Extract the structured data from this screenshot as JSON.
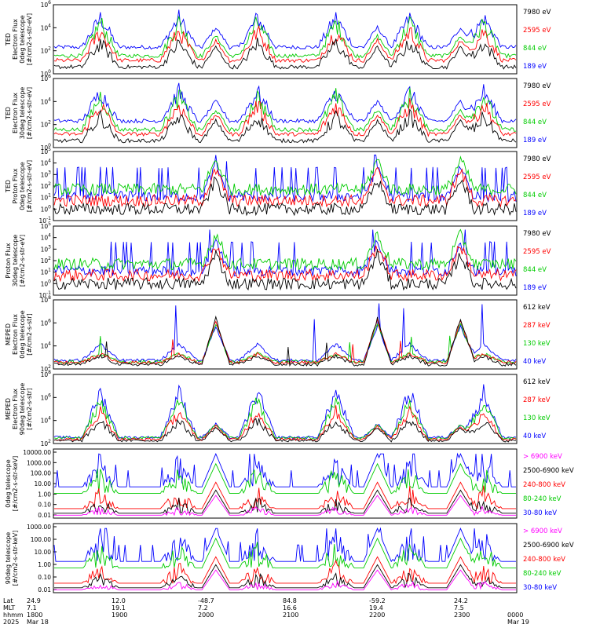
{
  "chart_data": [
    {
      "type": "line",
      "id": "ted-e-0",
      "ylabel": [
        "TED",
        "Electron Flux",
        "0deg telescope",
        "[#/cm2-s-str-eV]"
      ],
      "yticks": [
        "10^0",
        "10^2",
        "10^4",
        "10^6"
      ],
      "series": [
        {
          "name": "7980 eV",
          "color": "#000000"
        },
        {
          "name": "2595 eV",
          "color": "#ff0000"
        },
        {
          "name": "844 eV",
          "color": "#00cc00"
        },
        {
          "name": "189 eV",
          "color": "#0000ff"
        }
      ]
    },
    {
      "type": "line",
      "id": "ted-e-30",
      "ylabel": [
        "TED",
        "Electron Flux",
        "30deg telescope",
        "[#/cm2-s-str-eV]"
      ],
      "yticks": [
        "10^0",
        "10^2",
        "10^4",
        "10^6"
      ],
      "series": [
        {
          "name": "7980 eV",
          "color": "#000000"
        },
        {
          "name": "2595 eV",
          "color": "#ff0000"
        },
        {
          "name": "844 eV",
          "color": "#00cc00"
        },
        {
          "name": "189 eV",
          "color": "#0000ff"
        }
      ]
    },
    {
      "type": "line",
      "id": "ted-p-0",
      "ylabel": [
        "TED",
        "Proton Flux",
        "0deg telescope",
        "[#/cm2-s-str-eV]"
      ],
      "yticks": [
        "10^-1",
        "10^0",
        "10^1",
        "10^2",
        "10^3",
        "10^4",
        "10^5"
      ],
      "series": [
        {
          "name": "7980 eV",
          "color": "#000000"
        },
        {
          "name": "2595 eV",
          "color": "#ff0000"
        },
        {
          "name": "844 eV",
          "color": "#00cc00"
        },
        {
          "name": "189 eV",
          "color": "#0000ff"
        }
      ]
    },
    {
      "type": "line",
      "id": "ted-p-30",
      "ylabel": [
        "Proton Flux",
        "30deg telescope",
        "[#/cm2-s-str-eV]"
      ],
      "yticks": [
        "10^-1",
        "10^0",
        "10^1",
        "10^2",
        "10^3",
        "10^4",
        "10^5"
      ],
      "series": [
        {
          "name": "7980 eV",
          "color": "#000000"
        },
        {
          "name": "2595 eV",
          "color": "#ff0000"
        },
        {
          "name": "844 eV",
          "color": "#00cc00"
        },
        {
          "name": "189 eV",
          "color": "#0000ff"
        }
      ]
    },
    {
      "type": "line",
      "id": "meped-e-0",
      "ylabel": [
        "MEPED",
        "Electron Flux",
        "0deg telescope",
        "[#/cm2-s-str]"
      ],
      "yticks": [
        "10^2",
        "10^4",
        "10^6",
        "10^8"
      ],
      "series": [
        {
          "name": "612 keV",
          "color": "#000000"
        },
        {
          "name": "287 keV",
          "color": "#ff0000"
        },
        {
          "name": "130 keV",
          "color": "#00cc00"
        },
        {
          "name": "40 keV",
          "color": "#0000ff"
        }
      ]
    },
    {
      "type": "line",
      "id": "meped-e-90",
      "ylabel": [
        "MEPED",
        "Electron Flux",
        "90deg telescope",
        "[#/cm2-s-str]"
      ],
      "yticks": [
        "10^2",
        "10^4",
        "10^6",
        "10^8"
      ],
      "series": [
        {
          "name": "612 keV",
          "color": "#000000"
        },
        {
          "name": "287 keV",
          "color": "#ff0000"
        },
        {
          "name": "130 keV",
          "color": "#00cc00"
        },
        {
          "name": "40 keV",
          "color": "#0000ff"
        }
      ]
    },
    {
      "type": "line",
      "id": "meped-p-0",
      "ylabel": [
        "0deg telescope",
        "[#/cm2-s-str-keV]"
      ],
      "yticks": [
        "10000.00",
        "1000.00",
        "100.00",
        "10.00",
        "1.00",
        "0.10",
        "0.01"
      ],
      "series": [
        {
          "name": "> 6900 keV",
          "color": "#ff00ff"
        },
        {
          "name": "2500-6900 keV",
          "color": "#000000"
        },
        {
          "name": "240-800 keV",
          "color": "#ff0000"
        },
        {
          "name": "80-240 keV",
          "color": "#00cc00"
        },
        {
          "name": "30-80 keV",
          "color": "#0000ff"
        }
      ]
    },
    {
      "type": "line",
      "id": "meped-p-90",
      "ylabel": [
        "90deg telescope",
        "[#/cm2-s-str-keV]"
      ],
      "yticks": [
        "1000.00",
        "100.00",
        "10.00",
        "1.00",
        "0.10",
        "0.01"
      ],
      "series": [
        {
          "name": "> 6900 keV",
          "color": "#ff00ff"
        },
        {
          "name": "2500-6900 keV",
          "color": "#000000"
        },
        {
          "name": "240-800 keV",
          "color": "#ff0000"
        },
        {
          "name": "80-240 keV",
          "color": "#00cc00"
        },
        {
          "name": "30-80 keV",
          "color": "#0000ff"
        }
      ]
    }
  ],
  "x_axis": {
    "row_labels": [
      "Lat",
      "MLT",
      "hhmm",
      "2025"
    ],
    "columns": [
      {
        "lat": "24.9",
        "mlt": "7.1",
        "hhmm": "1800",
        "date": "Mar 18"
      },
      {
        "lat": "12.0",
        "mlt": "19.1",
        "hhmm": "1900",
        "date": ""
      },
      {
        "lat": "-48.7",
        "mlt": "7.2",
        "hhmm": "2000",
        "date": ""
      },
      {
        "lat": "84.8",
        "mlt": "16.6",
        "hhmm": "2100",
        "date": ""
      },
      {
        "lat": "-59.2",
        "mlt": "19.4",
        "hhmm": "2200",
        "date": ""
      },
      {
        "lat": "24.2",
        "mlt": "7.5",
        "hhmm": "2300",
        "date": ""
      },
      {
        "lat": "",
        "mlt": "",
        "hhmm": "0000",
        "date": "Mar 19"
      }
    ]
  }
}
